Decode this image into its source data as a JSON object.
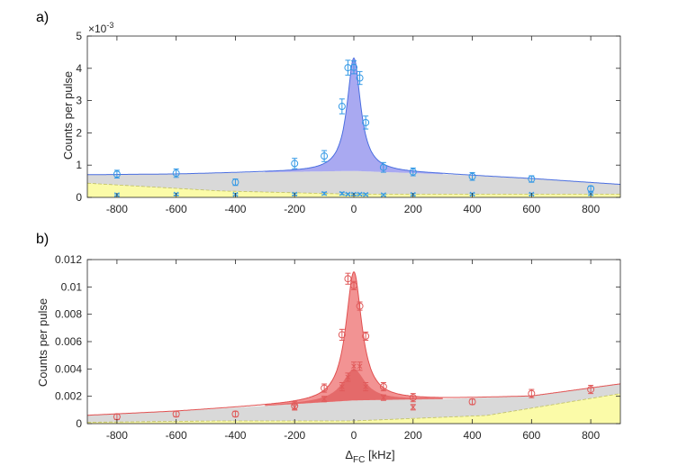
{
  "chart_data": [
    {
      "panel_label": "a)",
      "type": "scatter",
      "xlabel": "",
      "ylabel": "Counts per pulse",
      "exponent_label": "×10",
      "exponent_power": "-3",
      "xlim": [
        -900,
        900
      ],
      "ylim": [
        0,
        5
      ],
      "y_scale": 0.001,
      "xticks": [
        -800,
        -600,
        -400,
        -200,
        0,
        200,
        400,
        600,
        800
      ],
      "yticks": [
        0,
        1,
        2,
        3,
        4,
        5
      ],
      "xtick_labels": [
        "-800",
        "-600",
        "-400",
        "-200",
        "0",
        "200",
        "400",
        "600",
        "800"
      ],
      "ytick_labels": [
        "0",
        "1",
        "2",
        "3",
        "4",
        "5"
      ],
      "colors": {
        "signal": "#4a6ee0",
        "signal_fill": "#9a9aee",
        "points": "#3399e6",
        "background_fill": "#d9d9d9",
        "noise_fill": "#fbfba8"
      },
      "lorentzian": {
        "center": 0,
        "fwhm": 55
      },
      "series": [
        {
          "marker": "circle",
          "x": [
            -800,
            -600,
            -400,
            -200,
            -100,
            -40,
            -20,
            0,
            20,
            40,
            100,
            200,
            400,
            600,
            800
          ],
          "y": [
            0.72,
            0.75,
            0.47,
            1.05,
            1.28,
            2.82,
            4.02,
            4.03,
            3.7,
            2.32,
            0.93,
            0.79,
            0.65,
            0.57,
            0.27
          ],
          "err": [
            0.12,
            0.13,
            0.1,
            0.16,
            0.17,
            0.23,
            0.23,
            0.2,
            0.2,
            0.2,
            0.15,
            0.12,
            0.12,
            0.1,
            0.08
          ]
        },
        {
          "marker": "x",
          "x": [
            -800,
            -600,
            -400,
            -200,
            -100,
            -40,
            -20,
            0,
            20,
            40,
            100,
            200,
            400,
            600,
            800
          ],
          "y": [
            0.08,
            0.1,
            0.09,
            0.1,
            0.12,
            0.12,
            0.1,
            0.1,
            0.1,
            0.09,
            0.08,
            0.09,
            0.1,
            0.1,
            0.11
          ],
          "err": [
            0.03,
            0.03,
            0.03,
            0.03,
            0.04,
            0.04,
            0.03,
            0.03,
            0.03,
            0.03,
            0.03,
            0.03,
            0.03,
            0.03,
            0.03
          ]
        }
      ],
      "background_curve": {
        "x": [
          -900,
          -600,
          -300,
          0,
          300,
          600,
          900
        ],
        "y": [
          0.7,
          0.72,
          0.78,
          0.82,
          0.72,
          0.58,
          0.4
        ]
      },
      "noise_curve": {
        "x": [
          -900,
          -450,
          0,
          450,
          900
        ],
        "y": [
          0.44,
          0.2,
          0.1,
          0.1,
          0.1
        ]
      },
      "peak_curve": {
        "amplitude": 3.5
      }
    },
    {
      "panel_label": "b)",
      "type": "scatter",
      "xlabel": "Δ",
      "xlabel_sub": "FC",
      "xlabel_unit": " [kHz]",
      "ylabel": "Counts per pulse",
      "xlim": [
        -900,
        900
      ],
      "ylim": [
        0,
        0.012
      ],
      "xticks": [
        -800,
        -600,
        -400,
        -200,
        0,
        200,
        400,
        600,
        800
      ],
      "yticks": [
        0,
        0.002,
        0.004,
        0.006,
        0.008,
        0.01,
        0.012
      ],
      "xtick_labels": [
        "-800",
        "-600",
        "-400",
        "-200",
        "0",
        "200",
        "400",
        "600",
        "800"
      ],
      "ytick_labels": [
        "0",
        "0.002",
        "0.004",
        "0.006",
        "0.008",
        "0.01",
        "0.012"
      ],
      "colors": {
        "signal": "#e05050",
        "signal_fill": "#f08080",
        "inner_fill": "#e06060",
        "points": "#e05a5a",
        "background_fill": "#d9d9d9",
        "noise_fill": "#fbfba8"
      },
      "lorentzian": {
        "center": 0,
        "fwhm": 65
      },
      "series": [
        {
          "marker": "circle",
          "x": [
            -800,
            -600,
            -400,
            -200,
            -100,
            -40,
            -20,
            0,
            20,
            40,
            100,
            200,
            400,
            600,
            800
          ],
          "y": [
            0.0005,
            0.0007,
            0.0007,
            0.0013,
            0.0026,
            0.0065,
            0.0106,
            0.0101,
            0.0086,
            0.0064,
            0.0027,
            0.0019,
            0.0016,
            0.0022,
            0.0025
          ],
          "err": [
            0.0002,
            0.0002,
            0.0002,
            0.0003,
            0.0003,
            0.0004,
            0.0004,
            0.0003,
            0.0003,
            0.0003,
            0.0003,
            0.0003,
            0.0002,
            0.0003,
            0.0003
          ]
        },
        {
          "marker": "x",
          "x": [
            -200,
            -100,
            -40,
            -20,
            0,
            20,
            40,
            100,
            200
          ],
          "y": [
            0.0012,
            0.0018,
            0.0027,
            0.0034,
            0.0042,
            0.0042,
            0.0027,
            0.0019,
            0.0012
          ],
          "err": [
            0.0002,
            0.0002,
            0.0003,
            0.0003,
            0.0003,
            0.0003,
            0.0003,
            0.0002,
            0.0002
          ]
        }
      ],
      "background_curve": {
        "x": [
          -900,
          -600,
          -300,
          0,
          300,
          600,
          900
        ],
        "y": [
          0.0006,
          0.0009,
          0.0013,
          0.0017,
          0.0018,
          0.002,
          0.0029
        ]
      },
      "noise_curve": {
        "x": [
          -900,
          -450,
          0,
          450,
          900
        ],
        "y": [
          0.0001,
          0.0002,
          0.0002,
          0.0006,
          0.0022
        ]
      },
      "peak_curve": {
        "amplitude": 0.0094
      },
      "inner_peak_curve": {
        "amplitude": 0.0023
      }
    }
  ]
}
